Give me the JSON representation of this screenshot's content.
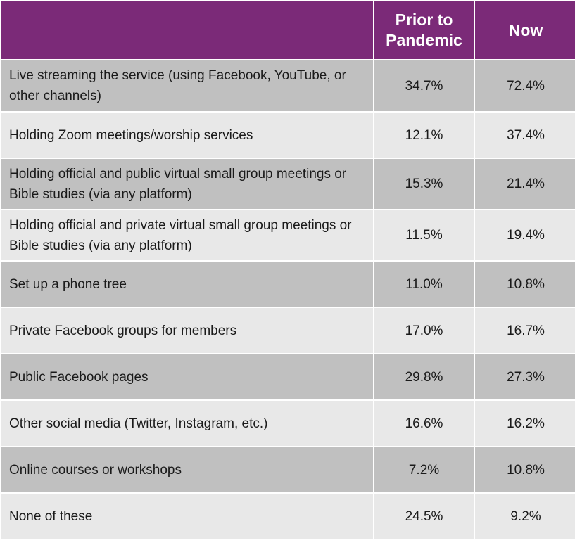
{
  "header": {
    "blank": "",
    "col1": "Prior to Pandemic",
    "col2": "Now"
  },
  "rows": [
    {
      "label": "Live streaming the service (using Facebook, YouTube, or other channels)",
      "prior": "34.7%",
      "now": "72.4%"
    },
    {
      "label": "Holding Zoom meetings/worship services",
      "prior": "12.1%",
      "now": "37.4%"
    },
    {
      "label": "Holding official and public virtual small group meetings or Bible studies (via any platform)",
      "prior": "15.3%",
      "now": "21.4%"
    },
    {
      "label": "Holding official and private virtual small group meetings or Bible studies (via any platform)",
      "prior": "11.5%",
      "now": "19.4%"
    },
    {
      "label": "Set up a phone tree",
      "prior": "11.0%",
      "now": "10.8%"
    },
    {
      "label": "Private Facebook groups for members",
      "prior": "17.0%",
      "now": "16.7%"
    },
    {
      "label": "Public Facebook pages",
      "prior": "29.8%",
      "now": "27.3%"
    },
    {
      "label": "Other social media (Twitter, Instagram, etc.)",
      "prior": "16.6%",
      "now": "16.2%"
    },
    {
      "label": "Online courses or workshops",
      "prior": "7.2%",
      "now": "10.8%"
    },
    {
      "label": "None of these",
      "prior": "24.5%",
      "now": "9.2%"
    }
  ],
  "colors": {
    "header_bg": "#7b2a78",
    "row_dark": "#c0c0c0",
    "row_light": "#e8e8e8"
  }
}
